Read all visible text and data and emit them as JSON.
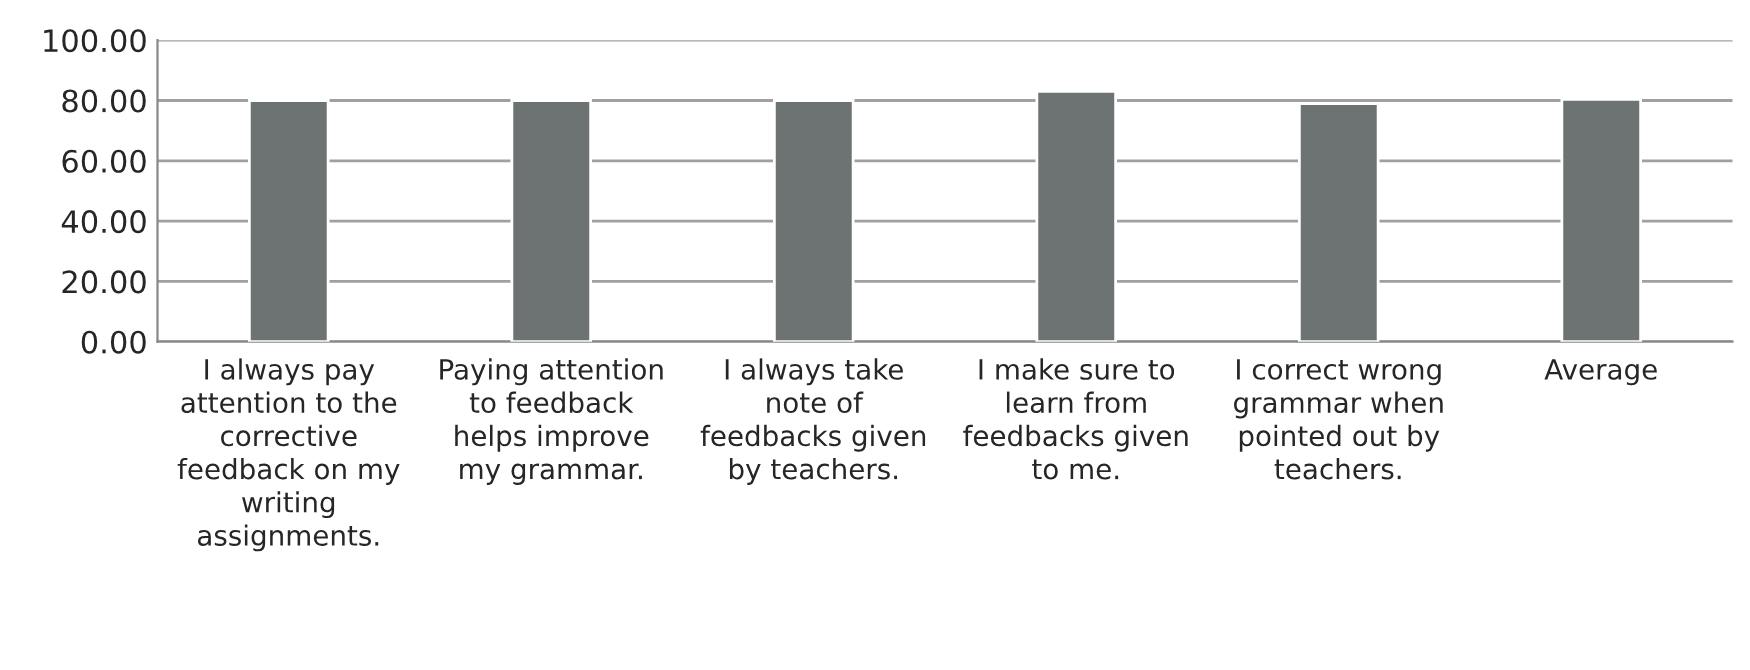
{
  "chart_data": {
    "type": "bar",
    "categories": [
      "I always pay\nattention to the\ncorrective\nfeedback on my\nwriting\nassignments.",
      "Paying attention\nto feedback\nhelps improve\nmy grammar.",
      "I always take\nnote of\nfeedbacks given\nby teachers.",
      "I make sure to\nlearn from\nfeedbacks given\nto me.",
      "I correct wrong\ngrammar when\npointed out by\nteachers.",
      "Average"
    ],
    "values": [
      80,
      80,
      80,
      83,
      79,
      80.4
    ],
    "color": "#6d7272",
    "ylim": [
      0,
      100
    ],
    "yticks": [
      {
        "value": 0,
        "label": "0.00"
      },
      {
        "value": 20,
        "label": "20.00"
      },
      {
        "value": 40,
        "label": "40.00"
      },
      {
        "value": 60,
        "label": "60.00"
      },
      {
        "value": 80,
        "label": "80.00"
      },
      {
        "value": 100,
        "label": "100.00"
      }
    ],
    "grid": "y",
    "legend": false
  }
}
